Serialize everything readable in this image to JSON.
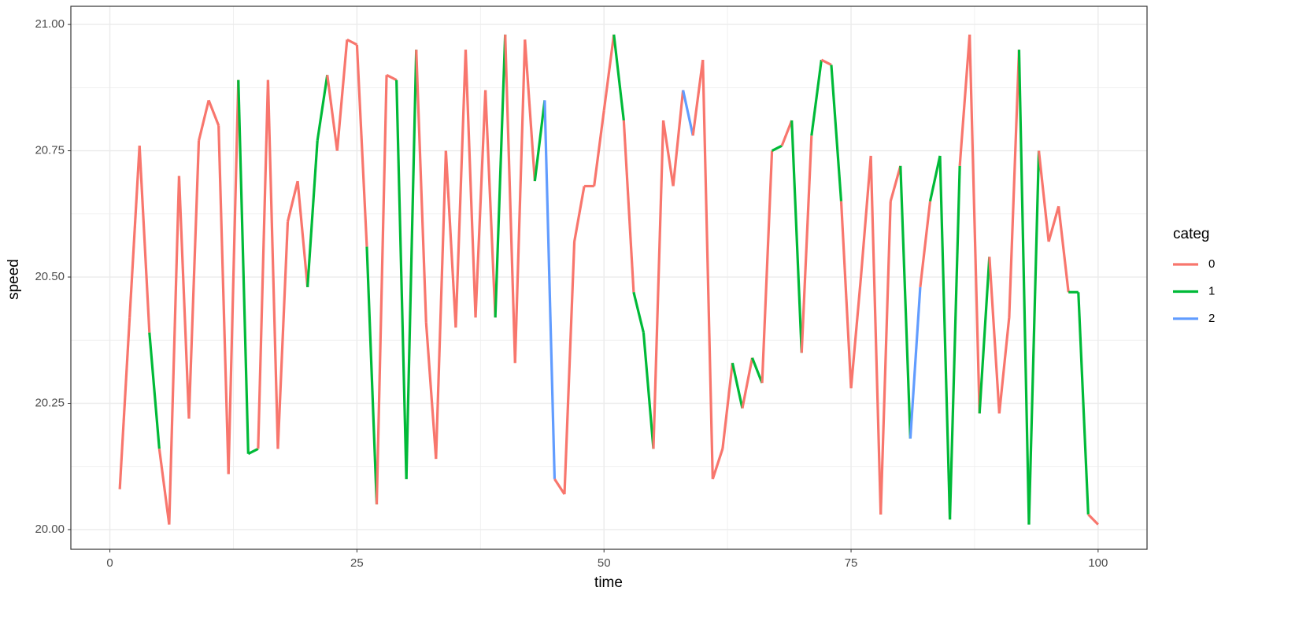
{
  "chart_data": {
    "type": "line",
    "x_label": "time",
    "y_label": "speed",
    "x": [
      1,
      2,
      3,
      4,
      5,
      6,
      7,
      8,
      9,
      10,
      11,
      12,
      13,
      14,
      15,
      16,
      17,
      18,
      19,
      20,
      21,
      22,
      23,
      24,
      25,
      26,
      27,
      28,
      29,
      30,
      31,
      32,
      33,
      34,
      35,
      36,
      37,
      38,
      39,
      40,
      41,
      42,
      43,
      44,
      45,
      46,
      47,
      48,
      49,
      50,
      51,
      52,
      53,
      54,
      55,
      56,
      57,
      58,
      59,
      60,
      61,
      62,
      63,
      64,
      65,
      66,
      67,
      68,
      69,
      70,
      71,
      72,
      73,
      74,
      75,
      76,
      77,
      78,
      79,
      80,
      81,
      82,
      83,
      84,
      85,
      86,
      87,
      88,
      89,
      90,
      91,
      92,
      93,
      94,
      95,
      96,
      97,
      98,
      99,
      100
    ],
    "series": [
      {
        "name": "speed",
        "values": [
          20.08,
          20.42,
          20.76,
          20.39,
          20.16,
          20.01,
          20.7,
          20.22,
          20.77,
          20.85,
          20.8,
          20.11,
          20.89,
          20.15,
          20.16,
          20.89,
          20.16,
          20.61,
          20.69,
          20.48,
          20.77,
          20.9,
          20.75,
          20.97,
          20.96,
          20.56,
          20.05,
          20.9,
          20.89,
          20.1,
          20.95,
          20.41,
          20.14,
          20.75,
          20.4,
          20.95,
          20.42,
          20.87,
          20.42,
          20.98,
          20.33,
          20.97,
          20.69,
          20.85,
          20.1,
          20.07,
          20.57,
          20.68,
          20.68,
          20.83,
          20.98,
          20.81,
          20.47,
          20.39,
          20.16,
          20.81,
          20.68,
          20.87,
          20.78,
          20.93,
          20.1,
          20.16,
          20.33,
          20.24,
          20.34,
          20.29,
          20.75,
          20.76,
          20.81,
          20.35,
          20.78,
          20.93,
          20.92,
          20.65,
          20.28,
          20.5,
          20.74,
          20.03,
          20.65,
          20.72,
          20.18,
          20.48,
          20.65,
          20.74,
          20.02,
          20.72,
          20.98,
          20.23,
          20.54,
          20.23,
          20.42,
          20.95,
          20.01,
          20.75,
          20.57,
          20.64,
          20.47,
          20.47,
          20.03,
          20.01
        ],
        "categ": [
          "0",
          "0",
          "0",
          "1",
          "0",
          "0",
          "0",
          "0",
          "0",
          "0",
          "0",
          "0",
          "1",
          "1",
          "0",
          "0",
          "0",
          "0",
          "0",
          "1",
          "1",
          "0",
          "0",
          "0",
          "0",
          "1",
          "0",
          "0",
          "1",
          "1",
          "0",
          "0",
          "0",
          "0",
          "0",
          "0",
          "0",
          "0",
          "1",
          "0",
          "0",
          "0",
          "1",
          "2",
          "0",
          "0",
          "0",
          "0",
          "0",
          "0",
          "1",
          "0",
          "1",
          "1",
          "0",
          "0",
          "0",
          "2",
          "0",
          "0",
          "0",
          "0",
          "1",
          "0",
          "1",
          "0",
          "1",
          "0",
          "1",
          "0",
          "1",
          "0",
          "1",
          "0",
          "0",
          "0",
          "0",
          "0",
          "0",
          "1",
          "2",
          "0",
          "1",
          "1",
          "1",
          "0",
          "0",
          "1",
          "0",
          "0",
          "0",
          "1",
          "1",
          "0",
          "0",
          "0",
          "1",
          "1",
          "0",
          "0"
        ]
      }
    ],
    "legend_title": "categ",
    "legend": [
      {
        "name": "0",
        "color": "#F8766D"
      },
      {
        "name": "1",
        "color": "#00BA38"
      },
      {
        "name": "2",
        "color": "#619CFF"
      }
    ],
    "xlim": [
      -3.95,
      104.95
    ],
    "xticks": [
      0,
      25,
      50,
      75,
      100
    ],
    "ylim": [
      19.961,
      21.036
    ],
    "yticks": [
      {
        "value": 20,
        "label": "20.00"
      },
      {
        "value": 20.25,
        "label": "20.25"
      },
      {
        "value": 20.5,
        "label": "20.50"
      },
      {
        "value": 20.75,
        "label": "20.75"
      },
      {
        "value": 21,
        "label": "21.00"
      }
    ],
    "grid": true,
    "minor_grid": true,
    "legend_position": "right"
  }
}
